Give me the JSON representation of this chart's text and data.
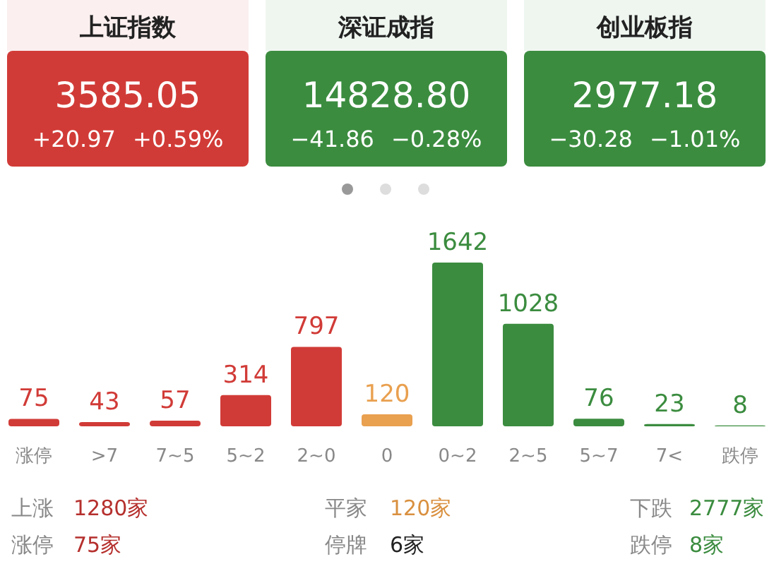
{
  "chart_data": [
    {
      "type": "other",
      "title": "上证指数",
      "color": "#d13b37",
      "annotations": [
        "3585.05",
        "+20.97",
        "+0.59%"
      ]
    },
    {
      "type": "other",
      "title": "深证成指",
      "color": "#3b8c3f",
      "annotations": [
        "14828.80",
        "−41.86",
        "−0.28%"
      ]
    },
    {
      "type": "other",
      "title": "创业板指",
      "color": "#3b8c3f",
      "annotations": [
        "2977.18",
        "−30.28",
        "−1.01%"
      ]
    },
    {
      "type": "bar",
      "categories": [
        "涨停",
        ">7",
        "7~5",
        "5~2",
        "2~0",
        "0",
        "0~2",
        "2~5",
        "5~7",
        "7<",
        "跌停"
      ],
      "values": [
        75,
        43,
        57,
        314,
        797,
        120,
        1642,
        1028,
        76,
        23,
        8
      ],
      "colors": [
        "#d13b37",
        "#d13b37",
        "#d13b37",
        "#d13b37",
        "#d13b37",
        "#e9a04f",
        "#3b8c3f",
        "#3b8c3f",
        "#3b8c3f",
        "#3b8c3f",
        "#3b8c3f"
      ],
      "data_labels": true
    },
    {
      "type": "other",
      "annotations": [
        "上涨",
        "1280家",
        "平家",
        "120家",
        "下跌",
        "2777家",
        "涨停",
        "75家",
        "停牌",
        "6家",
        "跌停",
        "8家"
      ],
      "colors": [
        "#888888",
        "#b5302d",
        "#888888",
        "#d9903f",
        "#888888",
        "#3b8c3f",
        "#888888",
        "#b5302d",
        "#888888",
        "#222222",
        "#888888",
        "#3b8c3f"
      ]
    }
  ]
}
